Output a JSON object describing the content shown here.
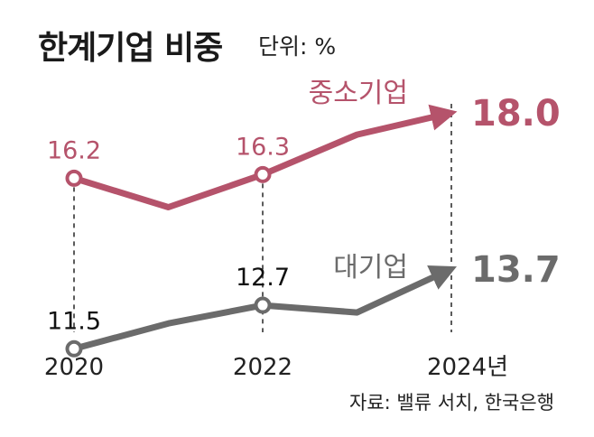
{
  "title": "한계기업 비중",
  "unit": "단위: %",
  "source": "자료: 밸류 서치, 한국은행",
  "colors": {
    "sme": "#b5536b",
    "large": "#6b6b6b",
    "text": "#222222",
    "guide": "#333333"
  },
  "chart_data": {
    "type": "line",
    "title": "한계기업 비중",
    "x": [
      "2020",
      "2021",
      "2022",
      "2023",
      "2024"
    ],
    "x_tick_labels": [
      "2020",
      "2022",
      "2024년"
    ],
    "x_tick_positions": [
      "2020",
      "2022",
      "2024"
    ],
    "ylabel": "단위: %",
    "series": [
      {
        "name": "중소기업",
        "key": "sme",
        "values": [
          16.2,
          15.4,
          16.3,
          17.4,
          18.0
        ],
        "labeled": [
          {
            "x": "2020",
            "label": "16.2"
          },
          {
            "x": "2022",
            "label": "16.3"
          }
        ],
        "end_label": "18.0"
      },
      {
        "name": "대기업",
        "key": "large",
        "values": [
          11.5,
          12.2,
          12.7,
          12.5,
          13.7
        ],
        "labeled": [
          {
            "x": "2020",
            "label": "11.5"
          },
          {
            "x": "2022",
            "label": "12.7"
          }
        ],
        "end_label": "13.7"
      }
    ]
  }
}
